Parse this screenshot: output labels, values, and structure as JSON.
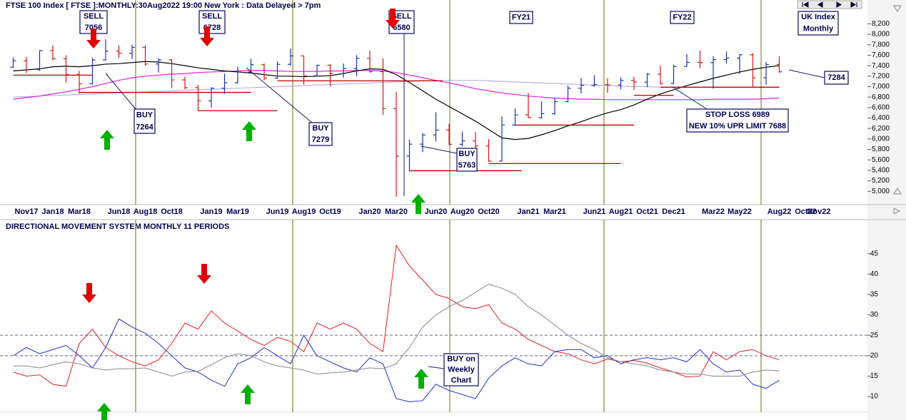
{
  "chart_data": [
    {
      "type": "ohlc",
      "title": "FTSE 100 Index [ FTSE ]:MONTHLY:30Aug2022 19:00 New York : Data Delayed > 7pm",
      "categories": [
        null,
        "Nov17",
        null,
        "Jan18",
        null,
        "Mar18",
        null,
        null,
        "Jun18",
        null,
        "Aug18",
        null,
        "Oct18",
        null,
        null,
        "Jan19",
        null,
        "Mar19",
        null,
        null,
        "Jun19",
        null,
        "Aug19",
        null,
        "Oct19",
        null,
        null,
        "Jan20",
        null,
        "Mar20",
        null,
        null,
        "Jun20",
        null,
        "Aug20",
        null,
        "Oct20",
        null,
        null,
        "Jan21",
        null,
        "Mar21",
        null,
        null,
        "Jun21",
        null,
        "Aug21",
        null,
        "Oct21",
        null,
        "Dec21",
        null,
        null,
        "Mar22",
        null,
        "May22",
        null,
        null,
        "Aug22",
        null,
        "Oct22",
        "Nov22"
      ],
      "open": [
        7373,
        7493,
        7327,
        7688,
        7534,
        7232,
        7057,
        7509,
        7678,
        7637,
        7749,
        7432,
        7510,
        7128,
        6980,
        6728,
        6969,
        7075,
        7280,
        7418,
        7162,
        7426,
        7587,
        7207,
        7408,
        7248,
        7347,
        7542,
        7286,
        6581,
        5672,
        5901,
        6077,
        6170,
        5898,
        5964,
        5866,
        5577,
        6266,
        6461,
        6407,
        6483,
        6714,
        6970,
        7023,
        7037,
        7032,
        7120,
        7086,
        7238,
        7059,
        7385,
        7464,
        7458,
        7516,
        7545,
        7608,
        7169,
        7423,
        null,
        null,
        null
      ],
      "high": [
        7556,
        7562,
        7697,
        7792,
        7600,
        7300,
        7550,
        7903,
        7790,
        7800,
        7790,
        7540,
        7530,
        7190,
        7030,
        6990,
        7250,
        7380,
        7530,
        7440,
        7480,
        7730,
        7590,
        7420,
        7430,
        7440,
        7600,
        7690,
        7540,
        6900,
        5990,
        6110,
        6510,
        6290,
        6140,
        6130,
        6000,
        6430,
        6580,
        6880,
        6720,
        6790,
        7020,
        7160,
        7220,
        7160,
        7180,
        7190,
        7260,
        7400,
        7420,
        7620,
        7690,
        7580,
        7670,
        7620,
        7640,
        7470,
        7580,
        null,
        null,
        null
      ],
      "low": [
        7363,
        7260,
        7300,
        7500,
        7073,
        6867,
        7040,
        7500,
        7550,
        7530,
        7400,
        7270,
        6970,
        6950,
        6540,
        6600,
        6860,
        7060,
        7270,
        7120,
        7150,
        7400,
        7040,
        7190,
        7000,
        7170,
        7200,
        7270,
        6460,
        4899,
        5380,
        5750,
        5950,
        5880,
        5860,
        5770,
        5560,
        5570,
        6260,
        6400,
        6390,
        6460,
        6700,
        6870,
        7000,
        6880,
        6950,
        6940,
        6990,
        7040,
        7050,
        7380,
        7350,
        6960,
        7440,
        7240,
        7000,
        7040,
        7260,
        null,
        null,
        null
      ],
      "close": [
        7493,
        7327,
        7688,
        7534,
        7232,
        7057,
        7509,
        7678,
        7637,
        7749,
        7432,
        7510,
        7128,
        6980,
        6728,
        6969,
        7075,
        7280,
        7418,
        7162,
        7426,
        7587,
        7207,
        7408,
        7248,
        7347,
        7542,
        7286,
        6581,
        5672,
        5901,
        6077,
        6170,
        5898,
        5964,
        5866,
        5577,
        6266,
        6461,
        6407,
        6483,
        6714,
        6970,
        7023,
        7037,
        7032,
        7120,
        7086,
        7238,
        7059,
        7385,
        7464,
        7458,
        7516,
        7545,
        7608,
        7169,
        7423,
        7284,
        null,
        null,
        null
      ],
      "up_color": "#1a32b0",
      "down_color": "#d01818",
      "overlays": [
        {
          "color": "#b8b0e8",
          "values": [
            6800,
            6810,
            6820,
            6830,
            6840,
            6850,
            6860,
            6870,
            6880,
            6890,
            6900,
            6910,
            6920,
            6930,
            6940,
            6950,
            6960,
            6970,
            6980,
            6990,
            7000,
            7010,
            7020,
            7030,
            7040,
            7050,
            7060,
            7070,
            7080,
            7090,
            7100,
            7110,
            7110,
            7120,
            7120,
            7120,
            7110,
            7100,
            7090,
            7080,
            7070,
            7060,
            7050,
            7040,
            7030,
            7020,
            7010,
            7000,
            7000,
            6990,
            6990,
            6990,
            6990,
            6990,
            6990,
            6990,
            6990,
            6990,
            6990,
            null,
            null,
            null
          ]
        },
        {
          "color": "#e020e0",
          "values": [
            6760,
            6790,
            6820,
            6860,
            6900,
            6950,
            7000,
            7060,
            7120,
            7170,
            7200,
            7220,
            7240,
            7250,
            7270,
            7280,
            7290,
            7300,
            7310,
            7310,
            7300,
            7290,
            7290,
            7290,
            7300,
            7300,
            7310,
            7310,
            7300,
            7270,
            7220,
            7170,
            7120,
            7070,
            7020,
            6960,
            6920,
            6880,
            6850,
            6820,
            6800,
            6780,
            6770,
            6760,
            6760,
            6750,
            6750,
            6750,
            6750,
            6750,
            6750,
            6750,
            6750,
            6760,
            6760,
            6760,
            6760,
            6770,
            6780,
            null,
            null,
            null
          ]
        },
        {
          "color": "#000000",
          "values": [
            7300,
            7320,
            7340,
            7380,
            7390,
            7380,
            7400,
            7430,
            7440,
            7460,
            7480,
            7470,
            7440,
            7400,
            7360,
            7330,
            7300,
            7280,
            7260,
            7230,
            7200,
            7200,
            7190,
            7200,
            7210,
            7250,
            7300,
            7340,
            7330,
            7230,
            7080,
            6920,
            6760,
            6620,
            6480,
            6340,
            6180,
            6020,
            5990,
            6010,
            6080,
            6160,
            6250,
            6330,
            6420,
            6500,
            6560,
            6650,
            6760,
            6860,
            6940,
            7020,
            7090,
            7160,
            7220,
            7280,
            7330,
            7370,
            7400,
            null,
            null,
            null
          ]
        }
      ],
      "levels": [
        {
          "value": 7220,
          "from": 0,
          "to": 6
        },
        {
          "value": 6890,
          "from": 5,
          "to": 18
        },
        {
          "value": 6540,
          "from": 14,
          "to": 20
        },
        {
          "value": 7110,
          "from": 20,
          "to": 32.5
        },
        {
          "value": 5393,
          "from": 30,
          "to": 38.5
        },
        {
          "value": 5530,
          "from": 36,
          "to": 46
        },
        {
          "value": 6265,
          "from": 38,
          "to": 47
        },
        {
          "value": 6835,
          "from": 47,
          "to": 50
        },
        {
          "value": 6989,
          "from": 49,
          "to": 58
        }
      ],
      "level_color": "#c00000",
      "annotations": [
        {
          "lines": [
            "SELL",
            "7056"
          ]
        },
        {
          "lines": [
            "SELL",
            "6728"
          ]
        },
        {
          "lines": [
            "SELL",
            "6580"
          ]
        },
        {
          "lines": [
            "BUY",
            "7264"
          ]
        },
        {
          "lines": [
            "BUY",
            "7279"
          ]
        },
        {
          "lines": [
            "BUY",
            "5763"
          ]
        },
        {
          "lines": [
            "FY21"
          ]
        },
        {
          "lines": [
            "FY22"
          ]
        },
        {
          "lines": [
            "UK Index",
            "Monthly"
          ]
        },
        {
          "lines": [
            "7284"
          ]
        },
        {
          "lines": [
            "STOP LOSS 6989",
            "NEW 10% UPR LIMIT 7688"
          ]
        }
      ],
      "ylim": [
        4840,
        8560
      ],
      "yticks": [
        {
          "value": 5000,
          "label": "5,000"
        },
        {
          "value": 5200,
          "label": "5,200"
        },
        {
          "value": 5400,
          "label": "5,400"
        },
        {
          "value": 5600,
          "label": "5,600"
        },
        {
          "value": 5800,
          "label": "5,800"
        },
        {
          "value": 6000,
          "label": "6,000"
        },
        {
          "value": 6200,
          "label": "6,200"
        },
        {
          "value": 6400,
          "label": "6,400"
        },
        {
          "value": 6600,
          "label": "6,600"
        },
        {
          "value": 6800,
          "label": "6,800"
        },
        {
          "value": 7000,
          "label": "7,000"
        },
        {
          "value": 7200,
          "label": "7,200"
        },
        {
          "value": 7400,
          "label": "7,400"
        },
        {
          "value": 7600,
          "label": "7,600"
        },
        {
          "value": 7800,
          "label": "7,800"
        },
        {
          "value": 8000,
          "label": "8,000"
        },
        {
          "value": 8200,
          "label": "8,200"
        }
      ]
    },
    {
      "type": "line",
      "title": "DIRECTIONAL MOVEMENT SYSTEM MONTHLY 11 PERIODS",
      "series": [
        {
          "color": "#e82020",
          "values": [
            16,
            15,
            15.3,
            13,
            12.5,
            23,
            26.5,
            22,
            20,
            18.5,
            17.5,
            19,
            23,
            28,
            26.5,
            31,
            28,
            26,
            24,
            22.5,
            24.5,
            23.5,
            21,
            28,
            26.5,
            28,
            26.5,
            23,
            21,
            47,
            42,
            38.5,
            35,
            34,
            32,
            31.5,
            32.5,
            28,
            26.5,
            24,
            22.5,
            21,
            20.5,
            19,
            18,
            19.2,
            18.5,
            18.8,
            18.2,
            17,
            16,
            14.8,
            15,
            21,
            19,
            21,
            21.5,
            20,
            19
          ]
        },
        {
          "color": "#2030d0",
          "values": [
            20,
            22,
            20.5,
            21.5,
            22.5,
            20,
            17,
            22,
            29,
            27,
            25.5,
            23,
            20,
            17,
            16,
            14,
            12.5,
            18,
            19.5,
            22,
            20,
            18,
            25,
            20,
            18.5,
            17,
            16,
            19.5,
            18,
            9.5,
            8.7,
            9,
            13,
            11.5,
            10.5,
            9.5,
            14.5,
            17.5,
            19.5,
            18,
            17.5,
            21,
            21.5,
            21.5,
            19.5,
            20,
            18,
            19,
            19.5,
            19,
            19.5,
            18.5,
            21.5,
            18,
            16,
            16.5,
            13,
            12,
            14
          ]
        },
        {
          "color": "#888888",
          "values": [
            17.5,
            17.5,
            17,
            17.8,
            18.5,
            18,
            17,
            16.5,
            16.8,
            16.8,
            17,
            16,
            15,
            16,
            16.2,
            17.8,
            19.5,
            20.5,
            20,
            18.5,
            17.5,
            17,
            16.5,
            15.5,
            15.8,
            16,
            16.5,
            17,
            16.8,
            18,
            22,
            27,
            30,
            32,
            33.5,
            35.5,
            37.5,
            36.5,
            35,
            32,
            30,
            27.5,
            25,
            23,
            21.5,
            19.5,
            18.5,
            18,
            17.5,
            16.5,
            16,
            15.5,
            15.5,
            15,
            15,
            15,
            16,
            16.5,
            16.3
          ]
        }
      ],
      "reference_lines": [
        25,
        20
      ],
      "annotations": [
        {
          "lines": [
            "BUY on",
            "Weekly",
            "Chart"
          ]
        }
      ],
      "ylim": [
        6,
        50
      ],
      "yticks": [
        10,
        15,
        20,
        25,
        30,
        35,
        40,
        45
      ]
    }
  ]
}
